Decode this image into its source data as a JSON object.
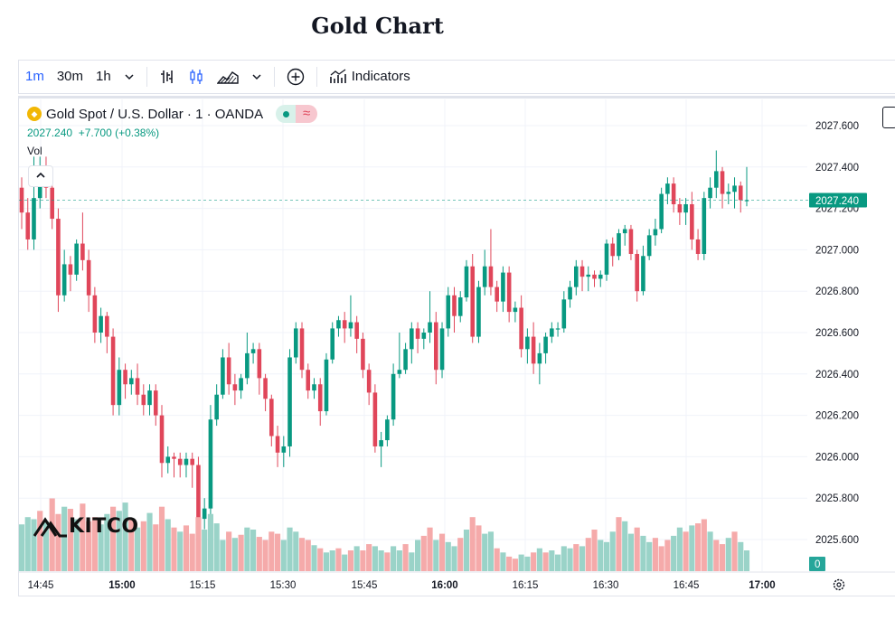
{
  "page": {
    "title": "Gold Chart"
  },
  "toolbar": {
    "intervals": [
      "1m",
      "30m",
      "1h"
    ],
    "active_interval": "1m",
    "indicators_label": "Indicators"
  },
  "legend": {
    "symbol": "Gold Spot / U.S. Dollar",
    "interval": "1",
    "source": "OANDA",
    "separator": "·",
    "price": "2027.240",
    "change": "+7.700",
    "change_pct": "(+0.38%)",
    "volume_label": "Vol"
  },
  "logo": {
    "text": "KITCO"
  },
  "colors": {
    "up": "#089981",
    "down": "#e0465a",
    "up_vol": "#9ad3c8",
    "down_vol": "#f5aaaa",
    "grid": "#f0f3fa"
  },
  "chart_data": {
    "type": "candlestick",
    "title": "Gold Spot / U.S. Dollar",
    "x_ticks": [
      "14:45",
      "15:00",
      "15:15",
      "15:30",
      "15:45",
      "16:00",
      "16:15",
      "16:30",
      "16:45",
      "17:00"
    ],
    "y_ticks": [
      "2027.600",
      "2027.400",
      "2027.200",
      "2027.000",
      "2026.800",
      "2026.600",
      "2026.400",
      "2026.200",
      "2026.000",
      "2025.800",
      "2025.600"
    ],
    "ylim": [
      2025.45,
      2027.65
    ],
    "last_price_label": "2027.240",
    "volume_axis_label": "0",
    "candles": [
      [
        2027.3,
        2027.18,
        2027.1,
        2027.35
      ],
      [
        2027.18,
        2027.05,
        2027.0,
        2027.25
      ],
      [
        2027.05,
        2027.25,
        2027.0,
        2027.45
      ],
      [
        2027.25,
        2027.4,
        2027.2,
        2027.45
      ],
      [
        2027.4,
        2027.3,
        2027.25,
        2027.45
      ],
      [
        2027.3,
        2027.15,
        2027.1,
        2027.35
      ],
      [
        2027.15,
        2026.78,
        2026.7,
        2027.2
      ],
      [
        2026.78,
        2026.93,
        2026.75,
        2027.0
      ],
      [
        2026.93,
        2026.88,
        2026.8,
        2026.97
      ],
      [
        2026.88,
        2027.03,
        2026.85,
        2027.05
      ],
      [
        2027.03,
        2026.95,
        2026.9,
        2027.18
      ],
      [
        2026.95,
        2026.78,
        2026.7,
        2027.0
      ],
      [
        2026.78,
        2026.6,
        2026.55,
        2026.82
      ],
      [
        2026.6,
        2026.68,
        2026.55,
        2026.72
      ],
      [
        2026.68,
        2026.58,
        2026.5,
        2026.7
      ],
      [
        2026.58,
        2026.25,
        2026.2,
        2026.62
      ],
      [
        2026.25,
        2026.42,
        2026.2,
        2026.48
      ],
      [
        2026.42,
        2026.35,
        2026.28,
        2026.45
      ],
      [
        2026.35,
        2026.38,
        2026.3,
        2026.42
      ],
      [
        2026.38,
        2026.3,
        2026.25,
        2026.45
      ],
      [
        2026.3,
        2026.25,
        2026.2,
        2026.35
      ],
      [
        2026.25,
        2026.32,
        2026.2,
        2026.35
      ],
      [
        2026.32,
        2026.2,
        2026.15,
        2026.35
      ],
      [
        2026.2,
        2025.97,
        2025.9,
        2026.25
      ],
      [
        2025.97,
        2026.0,
        2025.92,
        2026.05
      ],
      [
        2026.0,
        2025.99,
        2025.9,
        2026.02
      ],
      [
        2025.99,
        2025.96,
        2025.9,
        2026.02
      ],
      [
        2025.96,
        2025.99,
        2025.9,
        2026.02
      ],
      [
        2025.99,
        2025.96,
        2025.85,
        2026.02
      ],
      [
        2025.96,
        2025.7,
        2025.62,
        2026.0
      ],
      [
        2025.7,
        2025.75,
        2025.65,
        2025.8
      ],
      [
        2025.75,
        2026.18,
        2025.72,
        2026.25
      ],
      [
        2026.18,
        2026.3,
        2026.15,
        2026.35
      ],
      [
        2026.3,
        2026.48,
        2026.28,
        2026.52
      ],
      [
        2026.48,
        2026.35,
        2026.3,
        2026.55
      ],
      [
        2026.35,
        2026.32,
        2026.25,
        2026.4
      ],
      [
        2026.32,
        2026.38,
        2026.28,
        2026.4
      ],
      [
        2026.38,
        2026.5,
        2026.35,
        2026.6
      ],
      [
        2026.5,
        2026.52,
        2026.45,
        2026.55
      ],
      [
        2026.52,
        2026.38,
        2026.3,
        2026.55
      ],
      [
        2026.38,
        2026.28,
        2026.22,
        2026.4
      ],
      [
        2026.28,
        2026.1,
        2026.05,
        2026.3
      ],
      [
        2026.1,
        2026.02,
        2025.95,
        2026.15
      ],
      [
        2026.02,
        2026.05,
        2025.95,
        2026.1
      ],
      [
        2026.05,
        2026.48,
        2026.0,
        2026.52
      ],
      [
        2026.48,
        2026.62,
        2026.45,
        2026.65
      ],
      [
        2026.62,
        2026.42,
        2026.38,
        2026.65
      ],
      [
        2026.42,
        2026.32,
        2026.28,
        2026.45
      ],
      [
        2026.32,
        2026.35,
        2026.28,
        2026.38
      ],
      [
        2026.35,
        2026.22,
        2026.15,
        2026.38
      ],
      [
        2026.22,
        2026.47,
        2026.2,
        2026.5
      ],
      [
        2026.47,
        2026.62,
        2026.45,
        2026.65
      ],
      [
        2026.62,
        2026.66,
        2026.58,
        2026.68
      ],
      [
        2026.66,
        2026.62,
        2026.55,
        2026.7
      ],
      [
        2026.62,
        2026.65,
        2026.58,
        2026.78
      ],
      [
        2026.65,
        2026.57,
        2026.5,
        2026.68
      ],
      [
        2026.57,
        2026.42,
        2026.38,
        2026.6
      ],
      [
        2026.42,
        2026.31,
        2026.25,
        2026.45
      ],
      [
        2026.31,
        2026.05,
        2026.02,
        2026.35
      ],
      [
        2026.05,
        2026.08,
        2025.95,
        2026.12
      ],
      [
        2026.08,
        2026.18,
        2026.05,
        2026.2
      ],
      [
        2026.18,
        2026.4,
        2026.15,
        2026.45
      ],
      [
        2026.4,
        2026.42,
        2026.38,
        2026.6
      ],
      [
        2026.42,
        2026.52,
        2026.4,
        2026.55
      ],
      [
        2026.52,
        2026.62,
        2026.45,
        2026.65
      ],
      [
        2026.62,
        2026.57,
        2026.5,
        2026.65
      ],
      [
        2026.57,
        2026.6,
        2026.52,
        2026.62
      ],
      [
        2026.6,
        2026.65,
        2026.55,
        2026.8
      ],
      [
        2026.65,
        2026.42,
        2026.35,
        2026.7
      ],
      [
        2026.42,
        2026.62,
        2026.38,
        2026.65
      ],
      [
        2026.62,
        2026.78,
        2026.58,
        2026.82
      ],
      [
        2026.78,
        2026.68,
        2026.6,
        2026.82
      ],
      [
        2026.68,
        2026.77,
        2026.65,
        2026.8
      ],
      [
        2026.77,
        2026.92,
        2026.75,
        2026.95
      ],
      [
        2026.92,
        2026.58,
        2026.55,
        2026.98
      ],
      [
        2026.58,
        2026.82,
        2026.55,
        2026.85
      ],
      [
        2026.82,
        2026.92,
        2026.78,
        2027.0
      ],
      [
        2026.92,
        2026.82,
        2026.78,
        2027.1
      ],
      [
        2026.82,
        2026.75,
        2026.7,
        2026.85
      ],
      [
        2026.75,
        2026.89,
        2026.7,
        2026.92
      ],
      [
        2026.89,
        2026.7,
        2026.65,
        2026.92
      ],
      [
        2026.7,
        2026.72,
        2026.65,
        2026.75
      ],
      [
        2026.72,
        2026.52,
        2026.48,
        2026.78
      ],
      [
        2026.52,
        2026.58,
        2026.45,
        2026.62
      ],
      [
        2026.58,
        2026.45,
        2026.4,
        2026.65
      ],
      [
        2026.45,
        2026.5,
        2026.35,
        2026.55
      ],
      [
        2026.5,
        2026.58,
        2026.45,
        2026.6
      ],
      [
        2026.58,
        2026.62,
        2026.55,
        2026.65
      ],
      [
        2026.62,
        2026.62,
        2026.58,
        2026.65
      ],
      [
        2026.62,
        2026.76,
        2026.6,
        2026.8
      ],
      [
        2026.76,
        2026.82,
        2026.72,
        2026.85
      ],
      [
        2026.82,
        2026.92,
        2026.78,
        2026.95
      ],
      [
        2026.92,
        2026.87,
        2026.8,
        2026.95
      ],
      [
        2026.87,
        2026.88,
        2026.8,
        2026.92
      ],
      [
        2026.88,
        2026.86,
        2026.82,
        2026.9
      ],
      [
        2026.86,
        2026.88,
        2026.82,
        2026.9
      ],
      [
        2026.88,
        2027.03,
        2026.85,
        2027.05
      ],
      [
        2027.03,
        2026.97,
        2026.92,
        2027.06
      ],
      [
        2026.97,
        2027.08,
        2026.95,
        2027.1
      ],
      [
        2027.08,
        2027.1,
        2027.02,
        2027.12
      ],
      [
        2027.1,
        2026.98,
        2026.95,
        2027.12
      ],
      [
        2026.98,
        2026.8,
        2026.75,
        2027.0
      ],
      [
        2026.8,
        2026.97,
        2026.78,
        2027.02
      ],
      [
        2026.97,
        2027.07,
        2026.95,
        2027.1
      ],
      [
        2027.07,
        2027.1,
        2027.02,
        2027.15
      ],
      [
        2027.1,
        2027.27,
        2027.08,
        2027.3
      ],
      [
        2027.27,
        2027.32,
        2027.22,
        2027.35
      ],
      [
        2027.32,
        2027.22,
        2027.18,
        2027.35
      ],
      [
        2027.22,
        2027.18,
        2027.12,
        2027.25
      ],
      [
        2027.18,
        2027.22,
        2027.12,
        2027.25
      ],
      [
        2027.22,
        2027.05,
        2027.0,
        2027.28
      ],
      [
        2027.05,
        2026.98,
        2026.95,
        2027.1
      ],
      [
        2026.98,
        2027.25,
        2026.95,
        2027.28
      ],
      [
        2027.25,
        2027.3,
        2027.2,
        2027.35
      ],
      [
        2027.3,
        2027.38,
        2027.25,
        2027.48
      ],
      [
        2027.38,
        2027.27,
        2027.2,
        2027.4
      ],
      [
        2027.27,
        2027.28,
        2027.22,
        2027.32
      ],
      [
        2027.28,
        2027.31,
        2027.2,
        2027.35
      ],
      [
        2027.31,
        2027.24,
        2027.18,
        2027.33
      ],
      [
        2027.24,
        2027.24,
        2027.21,
        2027.4
      ]
    ],
    "volumes": [
      [
        0.45,
        "up"
      ],
      [
        0.52,
        "up"
      ],
      [
        0.5,
        "up"
      ],
      [
        0.58,
        "down"
      ],
      [
        0.48,
        "up"
      ],
      [
        0.7,
        "down"
      ],
      [
        0.55,
        "down"
      ],
      [
        0.62,
        "up"
      ],
      [
        0.6,
        "down"
      ],
      [
        0.5,
        "up"
      ],
      [
        0.65,
        "down"
      ],
      [
        0.48,
        "down"
      ],
      [
        0.52,
        "down"
      ],
      [
        0.45,
        "up"
      ],
      [
        0.55,
        "up"
      ],
      [
        0.62,
        "down"
      ],
      [
        0.58,
        "up"
      ],
      [
        0.66,
        "up"
      ],
      [
        0.5,
        "down"
      ],
      [
        0.42,
        "up"
      ],
      [
        0.48,
        "down"
      ],
      [
        0.56,
        "up"
      ],
      [
        0.45,
        "down"
      ],
      [
        0.62,
        "down"
      ],
      [
        0.5,
        "up"
      ],
      [
        0.42,
        "down"
      ],
      [
        0.38,
        "up"
      ],
      [
        0.44,
        "down"
      ],
      [
        0.36,
        "down"
      ],
      [
        0.52,
        "down"
      ],
      [
        0.4,
        "up"
      ],
      [
        0.55,
        "up"
      ],
      [
        0.46,
        "up"
      ],
      [
        0.3,
        "up"
      ],
      [
        0.38,
        "down"
      ],
      [
        0.32,
        "up"
      ],
      [
        0.35,
        "down"
      ],
      [
        0.42,
        "up"
      ],
      [
        0.4,
        "up"
      ],
      [
        0.33,
        "down"
      ],
      [
        0.3,
        "down"
      ],
      [
        0.38,
        "down"
      ],
      [
        0.36,
        "down"
      ],
      [
        0.3,
        "up"
      ],
      [
        0.42,
        "up"
      ],
      [
        0.38,
        "up"
      ],
      [
        0.32,
        "down"
      ],
      [
        0.3,
        "down"
      ],
      [
        0.25,
        "up"
      ],
      [
        0.22,
        "down"
      ],
      [
        0.18,
        "up"
      ],
      [
        0.2,
        "up"
      ],
      [
        0.22,
        "down"
      ],
      [
        0.16,
        "up"
      ],
      [
        0.2,
        "down"
      ],
      [
        0.24,
        "up"
      ],
      [
        0.2,
        "down"
      ],
      [
        0.26,
        "down"
      ],
      [
        0.24,
        "up"
      ],
      [
        0.2,
        "up"
      ],
      [
        0.18,
        "down"
      ],
      [
        0.24,
        "up"
      ],
      [
        0.2,
        "up"
      ],
      [
        0.26,
        "down"
      ],
      [
        0.18,
        "up"
      ],
      [
        0.3,
        "up"
      ],
      [
        0.34,
        "down"
      ],
      [
        0.42,
        "down"
      ],
      [
        0.3,
        "up"
      ],
      [
        0.36,
        "down"
      ],
      [
        0.28,
        "up"
      ],
      [
        0.24,
        "up"
      ],
      [
        0.32,
        "down"
      ],
      [
        0.4,
        "up"
      ],
      [
        0.52,
        "down"
      ],
      [
        0.44,
        "down"
      ],
      [
        0.36,
        "up"
      ],
      [
        0.38,
        "up"
      ],
      [
        0.22,
        "down"
      ],
      [
        0.18,
        "up"
      ],
      [
        0.14,
        "down"
      ],
      [
        0.12,
        "down"
      ],
      [
        0.16,
        "up"
      ],
      [
        0.14,
        "up"
      ],
      [
        0.18,
        "down"
      ],
      [
        0.22,
        "up"
      ],
      [
        0.18,
        "down"
      ],
      [
        0.2,
        "up"
      ],
      [
        0.16,
        "up"
      ],
      [
        0.24,
        "up"
      ],
      [
        0.22,
        "up"
      ],
      [
        0.26,
        "down"
      ],
      [
        0.24,
        "up"
      ],
      [
        0.32,
        "down"
      ],
      [
        0.4,
        "down"
      ],
      [
        0.3,
        "up"
      ],
      [
        0.28,
        "up"
      ],
      [
        0.38,
        "up"
      ],
      [
        0.52,
        "down"
      ],
      [
        0.48,
        "up"
      ],
      [
        0.36,
        "up"
      ],
      [
        0.42,
        "down"
      ],
      [
        0.34,
        "up"
      ],
      [
        0.28,
        "up"
      ],
      [
        0.32,
        "down"
      ],
      [
        0.24,
        "down"
      ],
      [
        0.3,
        "down"
      ],
      [
        0.34,
        "up"
      ],
      [
        0.42,
        "up"
      ],
      [
        0.38,
        "down"
      ],
      [
        0.44,
        "up"
      ],
      [
        0.46,
        "down"
      ],
      [
        0.5,
        "down"
      ],
      [
        0.38,
        "up"
      ],
      [
        0.3,
        "down"
      ],
      [
        0.26,
        "down"
      ],
      [
        0.32,
        "up"
      ],
      [
        0.38,
        "down"
      ],
      [
        0.28,
        "up"
      ],
      [
        0.2,
        "up"
      ]
    ]
  }
}
